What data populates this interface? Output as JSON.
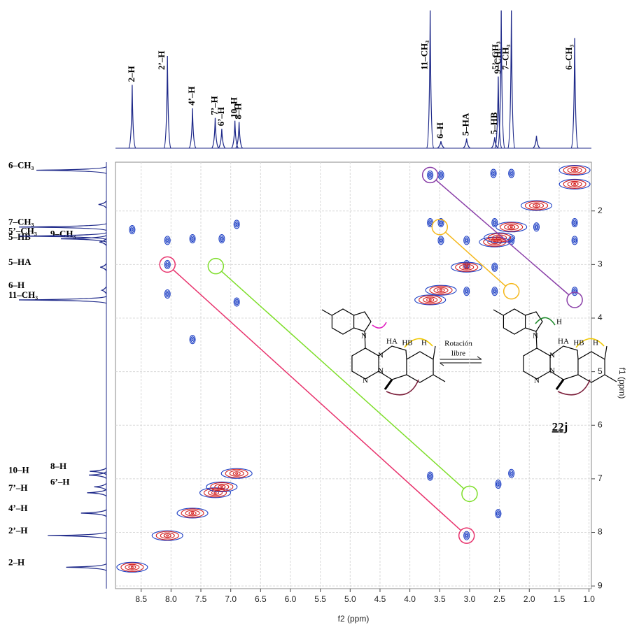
{
  "chart_data": {
    "type": "noesy",
    "x_label": "f2 (ppm)",
    "y_label": "f1 (ppm)",
    "xlim": [
      8.93,
      0.96
    ],
    "ylim": [
      1.09,
      9.05
    ],
    "xticks": [
      8.5,
      {
        "value": 8,
        "label": "8.0"
      },
      7.5,
      {
        "value": 7,
        "label": "7.0"
      },
      6.5,
      {
        "value": 6,
        "label": "6.0"
      },
      5.5,
      {
        "value": 5,
        "label": "5.0"
      },
      4.5,
      {
        "value": 4,
        "label": "4.0"
      },
      3.5,
      {
        "value": 3,
        "label": "3.0"
      },
      2.5,
      {
        "value": 2,
        "label": "2.0"
      },
      1.5,
      {
        "value": 1,
        "label": "1.0"
      }
    ],
    "yticks": [
      2,
      3,
      4,
      5,
      6,
      7,
      8,
      9
    ],
    "grid": true,
    "spectrum_color": "#1f2a8a",
    "peaks": {
      "labels": [
        "2–H",
        "2’–H",
        "4’–H",
        "7’–H",
        "6’–H",
        "10–H",
        "8–H",
        "11–CH₃",
        "6–H",
        "5–HA",
        "5–HB",
        "9–CH₃",
        "5’–CH₃",
        "7–CH₃",
        "6–CH₃",
        null
      ],
      "ppm": [
        8.65,
        8.06,
        7.64,
        7.26,
        7.15,
        6.93,
        6.86,
        3.66,
        3.48,
        3.05,
        2.58,
        2.52,
        2.47,
        2.3,
        1.24,
        1.88
      ],
      "height": [
        46,
        67,
        29,
        22,
        14,
        20,
        19,
        100,
        5,
        7,
        8,
        52,
        100,
        100,
        80,
        9
      ]
    },
    "noe_peaks": {
      "color": "#1d3fc4",
      "x": [
        8.65,
        8.06,
        8.06,
        8.06,
        7.64,
        7.15,
        6.9,
        6.9,
        7.64,
        3.66,
        3.48,
        3.48,
        3.05,
        3.05,
        3.05,
        2.58,
        2.58,
        2.58,
        2.3,
        1.24,
        1.24,
        3.48,
        3.66,
        2.6,
        2.3,
        1.24,
        3.66,
        2.52,
        2.52,
        2.3,
        3.05,
        1.88
      ],
      "y": [
        2.35,
        2.55,
        3.0,
        3.55,
        2.52,
        2.52,
        2.25,
        3.7,
        4.4,
        2.22,
        2.22,
        2.55,
        2.55,
        3.0,
        3.5,
        2.22,
        3.05,
        3.5,
        2.55,
        2.22,
        2.55,
        1.33,
        1.33,
        1.3,
        1.3,
        3.5,
        6.95,
        7.1,
        7.65,
        6.9,
        8.06,
        2.3
      ]
    },
    "diagonal_peaks": {
      "color": "#d42020",
      "x": [
        8.65,
        8.06,
        7.64,
        7.26,
        7.15,
        6.9,
        3.66,
        3.48,
        3.05,
        2.58,
        2.5,
        2.3,
        1.88,
        1.24,
        1.24
      ],
      "y": [
        8.65,
        8.06,
        7.64,
        7.26,
        7.15,
        6.9,
        3.66,
        3.48,
        3.05,
        2.58,
        2.5,
        2.3,
        1.9,
        1.24,
        1.5
      ]
    },
    "correlations": [
      {
        "color": "#e8336d",
        "x": [
          8.06,
          3.05
        ],
        "y": [
          3.0,
          8.06
        ]
      },
      {
        "color": "#7ede2a",
        "x": [
          7.25,
          3.0
        ],
        "y": [
          3.03,
          7.28
        ]
      },
      {
        "color": "#f5b81c",
        "x": [
          3.5,
          2.3
        ],
        "y": [
          2.3,
          3.5
        ]
      },
      {
        "color": "#8a3fa8",
        "x": [
          3.66,
          1.24
        ],
        "y": [
          1.33,
          3.66
        ]
      }
    ],
    "structures": [
      {
        "atoms": [
          "N",
          "N",
          "N",
          "N",
          "HA",
          "HB",
          "H"
        ]
      },
      {
        "atoms": [
          "N",
          "N",
          "N",
          "N",
          "HA",
          "HB",
          "H",
          "H"
        ]
      }
    ],
    "equilibrium_label": [
      "Rotación",
      "libre"
    ],
    "compound": "22j"
  }
}
